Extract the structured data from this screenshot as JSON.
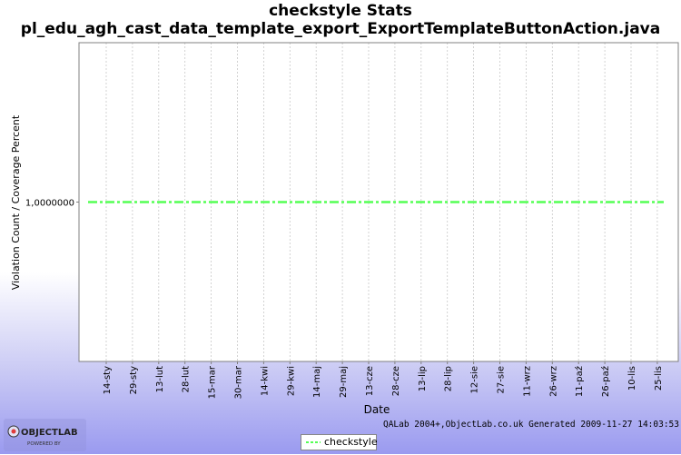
{
  "header": {
    "title_line1": "checkstyle  Stats",
    "title_line2": "pl_edu_agh_cast_data_template_export_ExportTemplateButtonAction.java"
  },
  "footer": {
    "generated_text": "QALab 2004+,ObjectLab.co.uk Generated 2009-11-27 14:03:53",
    "logo_text": "OBJECTLAB",
    "logo_subtext": "POWERED BY"
  },
  "colors": {
    "series_line": "#55ff55",
    "plot_border": "#808080",
    "grid": "#c8c8c8"
  },
  "chart_data": {
    "type": "line",
    "title": "checkstyle  Stats",
    "subtitle": "pl_edu_agh_cast_data_template_export_ExportTemplateButtonAction.java",
    "xlabel": "Date",
    "ylabel": "Violation Count / Coverage Percent",
    "x_tick_labels": [
      "14-sty",
      "29-sty",
      "13-lut",
      "28-lut",
      "15-mar",
      "30-mar",
      "14-kwi",
      "29-kwi",
      "14-maj",
      "29-maj",
      "13-cze",
      "28-cze",
      "13-lip",
      "28-lip",
      "12-sie",
      "27-sie",
      "11-wrz",
      "26-wrz",
      "11-paź",
      "26-paź",
      "10-lis",
      "25-lis"
    ],
    "y_tick_labels": [
      "1,0000000"
    ],
    "ylim": [
      0,
      2
    ],
    "grid": true,
    "legend_position": "bottom",
    "series": [
      {
        "name": "checkstyle",
        "x_range": [
          "06-sty",
          "27-lis"
        ],
        "values": [
          1,
          1
        ],
        "style": "dash-dot"
      }
    ]
  }
}
